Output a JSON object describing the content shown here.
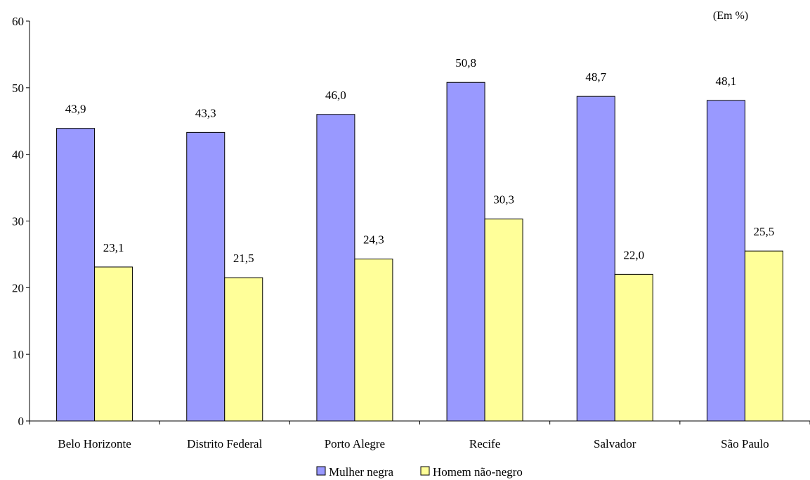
{
  "chart_data": {
    "type": "bar",
    "unit_note": "(Em %)",
    "categories": [
      "Belo Horizonte",
      "Distrito Federal",
      "Porto Alegre",
      "Recife",
      "Salvador",
      "São Paulo"
    ],
    "series": [
      {
        "name": "Mulher negra",
        "color": "#9999ff",
        "values": [
          43.9,
          43.3,
          46.0,
          50.8,
          48.7,
          48.1
        ],
        "labels": [
          "43,9",
          "43,3",
          "46,0",
          "50,8",
          "48,7",
          "48,1"
        ]
      },
      {
        "name": "Homem não-negro",
        "color": "#ffff99",
        "values": [
          23.1,
          21.5,
          24.3,
          30.3,
          22.0,
          25.5
        ],
        "labels": [
          "23,1",
          "21,5",
          "24,3",
          "30,3",
          "22,0",
          "25,5"
        ]
      }
    ],
    "ylim": [
      0,
      60
    ],
    "yticks": [
      "0",
      "10",
      "20",
      "30",
      "40",
      "50",
      "60"
    ],
    "grid": false,
    "legend_position": "bottom"
  }
}
